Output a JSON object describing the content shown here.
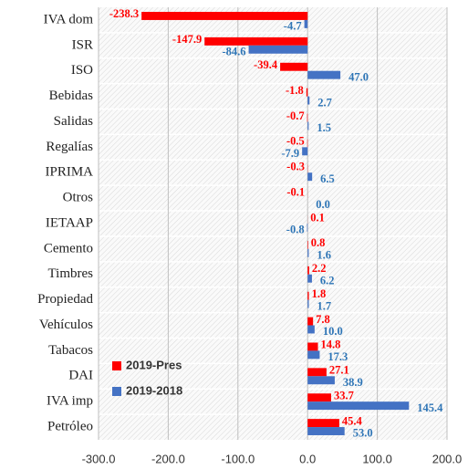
{
  "chart_data": {
    "type": "hbar",
    "categories": [
      "IVA dom",
      "ISR",
      "ISO",
      "Bebidas",
      "Salidas",
      "Regalías",
      "IPRIMA",
      "Otros",
      "IETAAP",
      "Cemento",
      "Timbres",
      "Propiedad",
      "Vehículos",
      "Tabacos",
      "DAI",
      "IVA imp",
      "Petróleo"
    ],
    "series": [
      {
        "name": "2019-Pres",
        "color": "#ff0000",
        "values": [
          -238.3,
          -147.9,
          -39.4,
          -1.8,
          -0.7,
          -0.5,
          -0.3,
          -0.1,
          0.1,
          0.8,
          2.2,
          1.8,
          7.8,
          14.8,
          27.1,
          33.7,
          45.4
        ],
        "value_labels": [
          "-238.3",
          "-147.9",
          "-39.4",
          "-1.8",
          "-0.7",
          "-0.5",
          "-0.3",
          "-0.1",
          "0.1",
          "0.8",
          "2.2",
          "1.8",
          "7.8",
          "14.8",
          "27.1",
          "33.7",
          "45.4"
        ]
      },
      {
        "name": "2019-2018",
        "color": "#4472c4",
        "values": [
          -4.7,
          -84.6,
          47.0,
          2.7,
          1.5,
          -7.9,
          6.5,
          0.0,
          -0.8,
          1.6,
          6.2,
          1.7,
          10.0,
          17.3,
          38.9,
          145.4,
          53.0
        ],
        "value_labels": [
          "-4.7",
          "-84.6",
          "47.0",
          "2.7",
          "1.5",
          "-7.9",
          "6.5",
          "0.0",
          "-0.8",
          "1.6",
          "6.2",
          "1.7",
          "10.0",
          "17.3",
          "38.9",
          "145.4",
          "53.0"
        ]
      }
    ],
    "xlim": [
      -300,
      200
    ],
    "xticks": [
      {
        "value": -300,
        "label": "-300.0"
      },
      {
        "value": -200,
        "label": "-200.0"
      },
      {
        "value": -100,
        "label": "-100.0"
      },
      {
        "value": 0,
        "label": "0.0"
      },
      {
        "value": 100,
        "label": "100.0"
      },
      {
        "value": 200,
        "label": "200.0"
      }
    ],
    "grid": true
  }
}
